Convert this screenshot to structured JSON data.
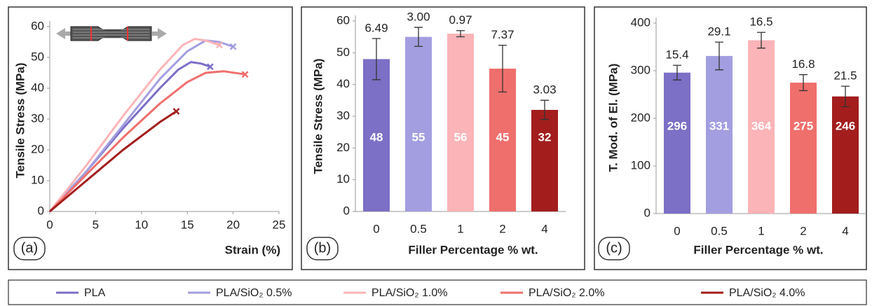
{
  "chart_data": [
    {
      "type": "line",
      "label": "(a)",
      "x_label": "Strain (%)",
      "y_label": "Tensile Stress (MPa)",
      "xlim": [
        0,
        25
      ],
      "xticks": [
        0,
        5,
        10,
        15,
        20,
        25
      ],
      "ylim": [
        0,
        60
      ],
      "yticks": [
        0,
        10,
        20,
        30,
        40,
        50,
        60
      ],
      "series": [
        {
          "name": "PLA",
          "color": "#7b6fc6",
          "x": [
            0,
            4,
            8,
            12,
            14,
            15.4,
            16.5,
            17.5
          ],
          "values": [
            0,
            13,
            27,
            40,
            46,
            48.5,
            48,
            47
          ]
        },
        {
          "name": "PLA/SiO₂ 0.5%",
          "color": "#a39ee0",
          "x": [
            0,
            4,
            8,
            12,
            15,
            17,
            18.5,
            20
          ],
          "values": [
            0,
            13,
            28,
            43,
            52,
            55.5,
            55,
            53.5
          ]
        },
        {
          "name": "PLA/SiO₂ 1.0%",
          "color": "#fbb4b7",
          "x": [
            0,
            4,
            8,
            12,
            14.5,
            15.8,
            17,
            18.5
          ],
          "values": [
            0,
            15,
            31,
            46,
            54,
            56,
            55.5,
            54
          ]
        },
        {
          "name": "PLA/SiO₂ 2.0%",
          "color": "#ef6f6c",
          "x": [
            0,
            4,
            8,
            12,
            15,
            17,
            19,
            21.3
          ],
          "values": [
            0,
            12,
            24,
            35,
            42,
            45,
            45.5,
            44.5
          ]
        },
        {
          "name": "PLA/SiO₂ 4.0%",
          "color": "#a31d1d",
          "x": [
            0,
            4,
            8,
            12,
            13.8
          ],
          "values": [
            0,
            10,
            20,
            29,
            32.5
          ]
        }
      ]
    },
    {
      "type": "bar",
      "label": "(b)",
      "x_label": "Filler Percentage % wt.",
      "y_label": "Tensile Stress (MPa)",
      "ylim": [
        0,
        60
      ],
      "yticks": [
        0,
        10,
        20,
        30,
        40,
        50,
        60
      ],
      "categories": [
        "0",
        "0.5",
        "1",
        "2",
        "4"
      ],
      "values": [
        48,
        55,
        56,
        45,
        32
      ],
      "errors": [
        6.49,
        3,
        0.97,
        7.37,
        3.03
      ],
      "error_labels": [
        "6.49",
        "3.00",
        "0.97",
        "7.37",
        "3.03"
      ],
      "colors": [
        "#7b6fc6",
        "#a39ee0",
        "#fbb4b7",
        "#ef6f6c",
        "#a31d1d"
      ]
    },
    {
      "type": "bar",
      "label": "(c)",
      "x_label": "Filler Percentage % wt.",
      "y_label": "T. Mod. of El. (MPa)",
      "ylim": [
        0,
        400
      ],
      "yticks": [
        0,
        100,
        200,
        300,
        400
      ],
      "categories": [
        "0",
        "0.5",
        "1",
        "2",
        "4"
      ],
      "values": [
        296,
        331,
        364,
        275,
        246
      ],
      "errors": [
        15.4,
        29.1,
        16.5,
        16.8,
        21.5
      ],
      "colors": [
        "#7b6fc6",
        "#a39ee0",
        "#fbb4b7",
        "#ef6f6c",
        "#a31d1d"
      ]
    }
  ]
}
